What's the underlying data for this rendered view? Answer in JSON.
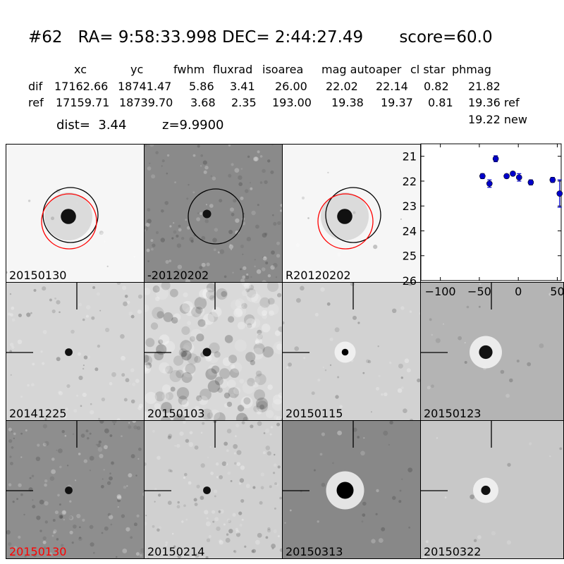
{
  "header": {
    "title": "#62   RA= 9:58:33.998 DEC= 2:44:27.49       score=60.0",
    "columns": [
      {
        "label": "xc",
        "dif": "17162.66",
        "ref": "17159.71"
      },
      {
        "label": "yc",
        "dif": "18741.47",
        "ref": "18739.70"
      },
      {
        "label": "fwhm",
        "dif": "5.86",
        "ref": "3.68"
      },
      {
        "label": "fluxrad",
        "dif": "3.41",
        "ref": "2.35"
      },
      {
        "label": "isoarea",
        "dif": "26.00",
        "ref": "193.00"
      },
      {
        "label": "mag auto",
        "dif": "22.02",
        "ref": "19.38"
      },
      {
        "label": "aper",
        "dif": "22.14",
        "ref": "19.37"
      },
      {
        "label": "cl star",
        "dif": "0.82",
        "ref": "0.81"
      },
      {
        "label": "phmag",
        "dif": "21.82",
        "ref": "19.36 ref"
      }
    ],
    "row_labels": {
      "dif": "dif",
      "ref": "ref"
    },
    "extra_line": "19.22 new",
    "dist_line": "dist=  3.44",
    "z_line": "z=9.9900"
  },
  "panels": [
    {
      "label": "20150130",
      "label_color": "#000000"
    },
    {
      "label": "-20120202",
      "label_color": "#000000"
    },
    {
      "label": "R20120202",
      "label_color": "#000000"
    },
    {
      "label": "20141225",
      "label_color": "#000000"
    },
    {
      "label": "20150103",
      "label_color": "#000000"
    },
    {
      "label": "20150115",
      "label_color": "#000000"
    },
    {
      "label": "20150123",
      "label_color": "#000000"
    },
    {
      "label": "20150130",
      "label_color": "#ff0000"
    },
    {
      "label": "20150214",
      "label_color": "#000000"
    },
    {
      "label": "20150313",
      "label_color": "#000000"
    },
    {
      "label": "20150322",
      "label_color": "#000000"
    }
  ],
  "chart_data": {
    "type": "scatter",
    "title": "",
    "xlabel": "",
    "ylabel": "",
    "xlim": [
      -125,
      55
    ],
    "ylim": [
      26,
      20.5
    ],
    "y_inverted": true,
    "xticks": [
      -100,
      -50,
      0,
      50
    ],
    "yticks": [
      21,
      22,
      23,
      24,
      25,
      26
    ],
    "marker_color": "#0000cc",
    "points": [
      {
        "x": -46,
        "y": 21.8,
        "err": 0.1
      },
      {
        "x": -37,
        "y": 22.1,
        "err": 0.15
      },
      {
        "x": -29,
        "y": 21.1,
        "err": 0.12
      },
      {
        "x": -15,
        "y": 21.8,
        "err": 0.08
      },
      {
        "x": -7,
        "y": 21.7,
        "err": 0.07
      },
      {
        "x": 1,
        "y": 21.85,
        "err": 0.15
      },
      {
        "x": 16,
        "y": 22.05,
        "err": 0.1
      },
      {
        "x": 44,
        "y": 21.95,
        "err": 0.1
      },
      {
        "x": 53,
        "y": 22.5,
        "err": 0.55
      }
    ]
  }
}
